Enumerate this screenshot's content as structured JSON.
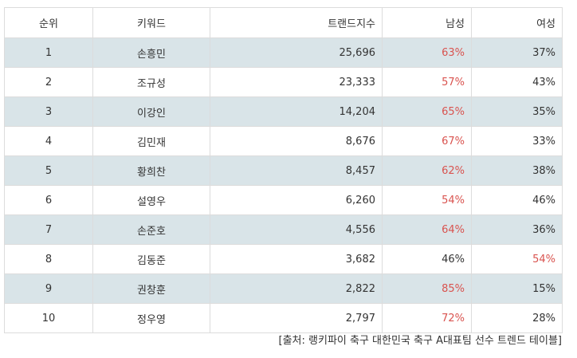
{
  "headers": {
    "rank": "순위",
    "keyword": "키워드",
    "index": "트랜드지수",
    "male": "남성",
    "female": "여성"
  },
  "rows": [
    {
      "rank": "1",
      "keyword": "손흥민",
      "index": "25,696",
      "male": "63%",
      "female": "37%",
      "male_hl": true,
      "female_hl": false
    },
    {
      "rank": "2",
      "keyword": "조규성",
      "index": "23,333",
      "male": "57%",
      "female": "43%",
      "male_hl": true,
      "female_hl": false
    },
    {
      "rank": "3",
      "keyword": "이강인",
      "index": "14,204",
      "male": "65%",
      "female": "35%",
      "male_hl": true,
      "female_hl": false
    },
    {
      "rank": "4",
      "keyword": "김민재",
      "index": "8,676",
      "male": "67%",
      "female": "33%",
      "male_hl": true,
      "female_hl": false
    },
    {
      "rank": "5",
      "keyword": "황희찬",
      "index": "8,457",
      "male": "62%",
      "female": "38%",
      "male_hl": true,
      "female_hl": false
    },
    {
      "rank": "6",
      "keyword": "설영우",
      "index": "6,260",
      "male": "54%",
      "female": "46%",
      "male_hl": true,
      "female_hl": false
    },
    {
      "rank": "7",
      "keyword": "손준호",
      "index": "4,556",
      "male": "64%",
      "female": "36%",
      "male_hl": true,
      "female_hl": false
    },
    {
      "rank": "8",
      "keyword": "김동준",
      "index": "3,682",
      "male": "46%",
      "female": "54%",
      "male_hl": false,
      "female_hl": true
    },
    {
      "rank": "9",
      "keyword": "권창훈",
      "index": "2,822",
      "male": "85%",
      "female": "15%",
      "male_hl": true,
      "female_hl": false
    },
    {
      "rank": "10",
      "keyword": "정우영",
      "index": "2,797",
      "male": "72%",
      "female": "28%",
      "male_hl": true,
      "female_hl": false
    }
  ],
  "source": "[출처: 랭키파이 축구 대한민국 축구 A대표팀 선수 트렌드 테이블]",
  "colors": {
    "highlight": "#d9534f",
    "row_shade": "#d9e4e8",
    "border": "#dcdcdc"
  }
}
